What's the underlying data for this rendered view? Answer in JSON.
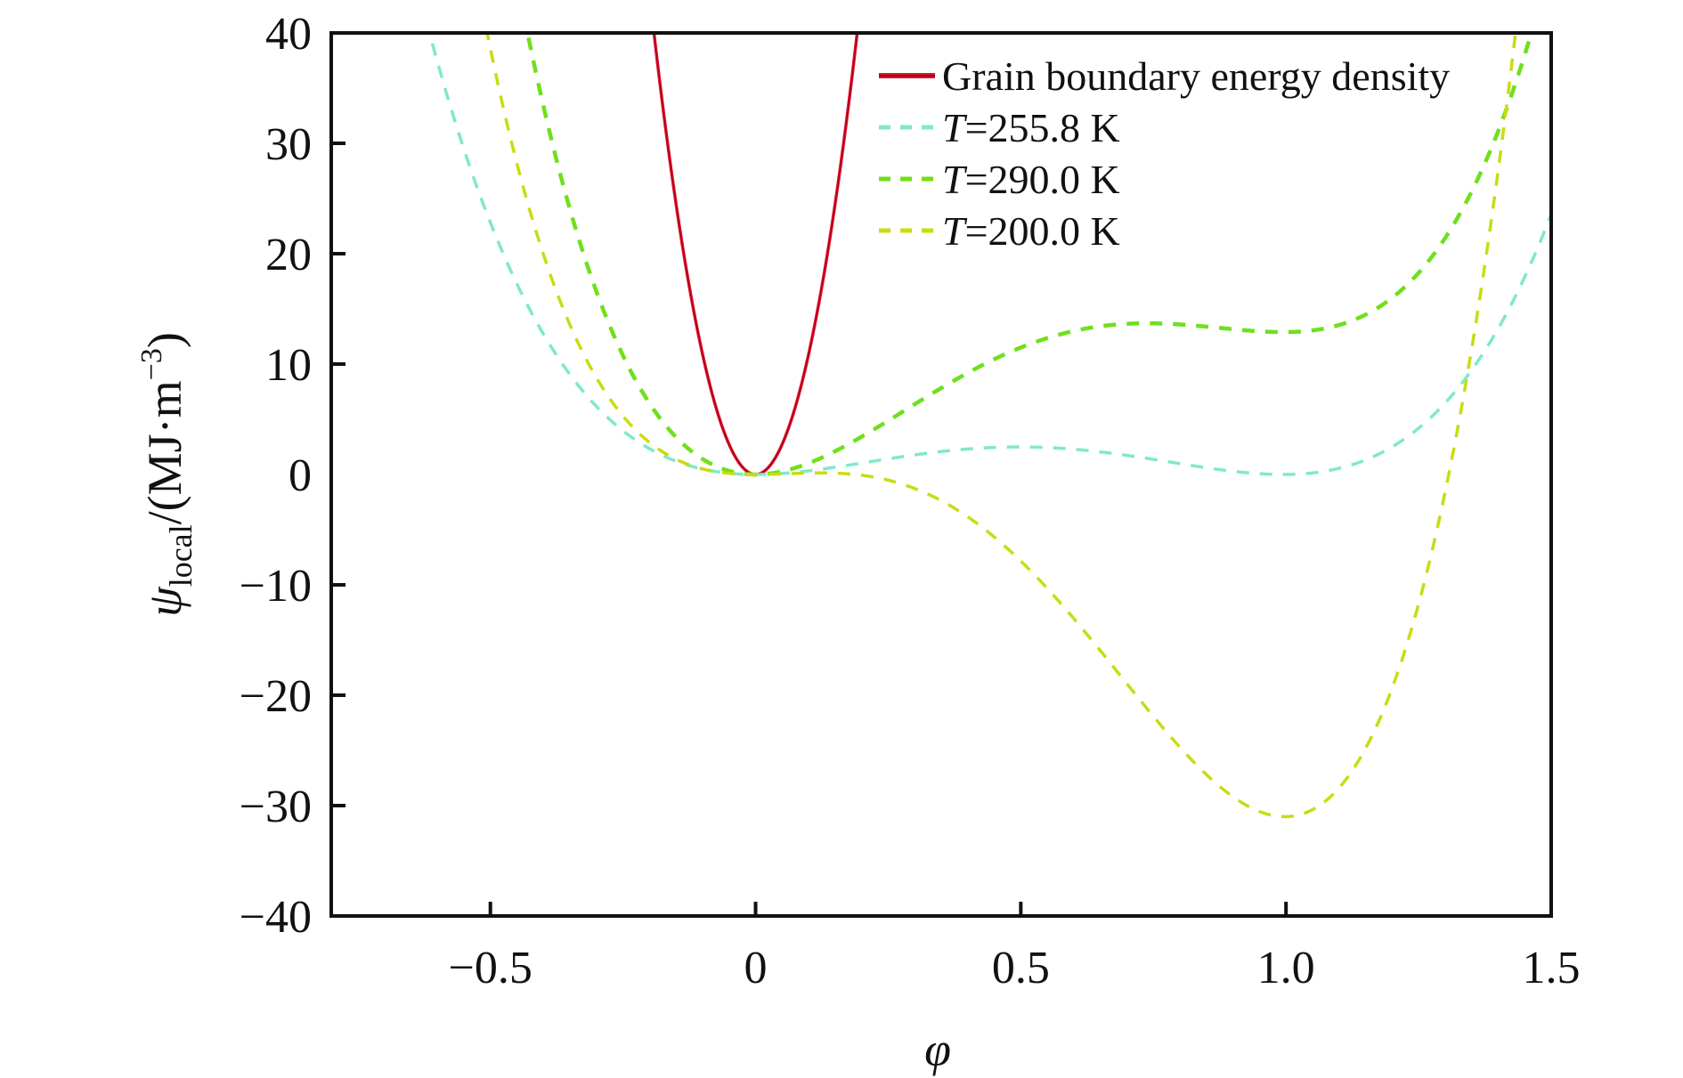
{
  "chart_data": {
    "type": "line",
    "title": "",
    "xlabel": "φ",
    "ylabel": {
      "symbol": "ψ",
      "subscript": "local",
      "unit_prefix": "/(MJ·m",
      "unit_superscript": "−3",
      "unit_suffix": ")"
    },
    "xlim": [
      -0.8,
      1.5
    ],
    "ylim": [
      -40,
      40
    ],
    "xticks": [
      -0.5,
      0,
      0.5,
      1.0,
      1.5
    ],
    "xtick_labels": [
      "−0.5",
      "0",
      "0.5",
      "1.0",
      "1.5"
    ],
    "yticks": [
      40,
      30,
      20,
      10,
      0,
      -10,
      -20,
      -30,
      -40
    ],
    "ytick_labels": [
      "40",
      "30",
      "20",
      "10",
      "0",
      "−10",
      "−20",
      "−30",
      "−40"
    ],
    "grid": false,
    "legend_position": "top-right",
    "series": [
      {
        "name": "Grain boundary energy density",
        "label_italic_prefix": "",
        "label_rest": "Grain boundary energy density",
        "style": "solid",
        "color": "#e8102a",
        "model": "polynomial",
        "coefficients_phi2_phi3_phi4": [
          1090,
          0,
          0
        ],
        "key_points": [
          [
            -0.19,
            40
          ],
          [
            0,
            0
          ],
          [
            0.19,
            40
          ]
        ]
      },
      {
        "name": "T=255.8 K",
        "label_italic_prefix": "T",
        "label_rest": "=255.8 K",
        "style": "dashed",
        "color": "#7fe9c9",
        "model": "polynomial",
        "coefficients_phi2_phi3_phi4": [
          40.4,
          -81.3,
          40.9
        ],
        "key_points": [
          [
            -0.6,
            40
          ],
          [
            0,
            0
          ],
          [
            0.5,
            2.5
          ],
          [
            1.0,
            0
          ],
          [
            1.5,
            23.5
          ]
        ]
      },
      {
        "name": "T=290.0 K",
        "label_italic_prefix": "T",
        "label_rest": "=290.0 K",
        "style": "dashed",
        "color": "#6fe01c",
        "model": "polynomial",
        "coefficients_phi2_phi3_phi4": [
          120.0,
          -188.9,
          81.8
        ],
        "key_points": [
          [
            -0.43,
            40
          ],
          [
            0,
            0
          ],
          [
            0.75,
            13.7
          ],
          [
            1.0,
            12.9
          ],
          [
            1.47,
            40
          ]
        ]
      },
      {
        "name": "T=200.0 K",
        "label_italic_prefix": "T",
        "label_rest": "=200.0 K",
        "style": "dashed",
        "color": "#c9dc12",
        "model": "polynomial",
        "coefficients_phi2_phi3_phi4": [
          30.4,
          -185.7,
          124.3
        ],
        "key_points": [
          [
            -0.51,
            40
          ],
          [
            0,
            0
          ],
          [
            0.5,
            -8
          ],
          [
            1.0,
            -31
          ],
          [
            1.43,
            40
          ]
        ]
      }
    ]
  }
}
